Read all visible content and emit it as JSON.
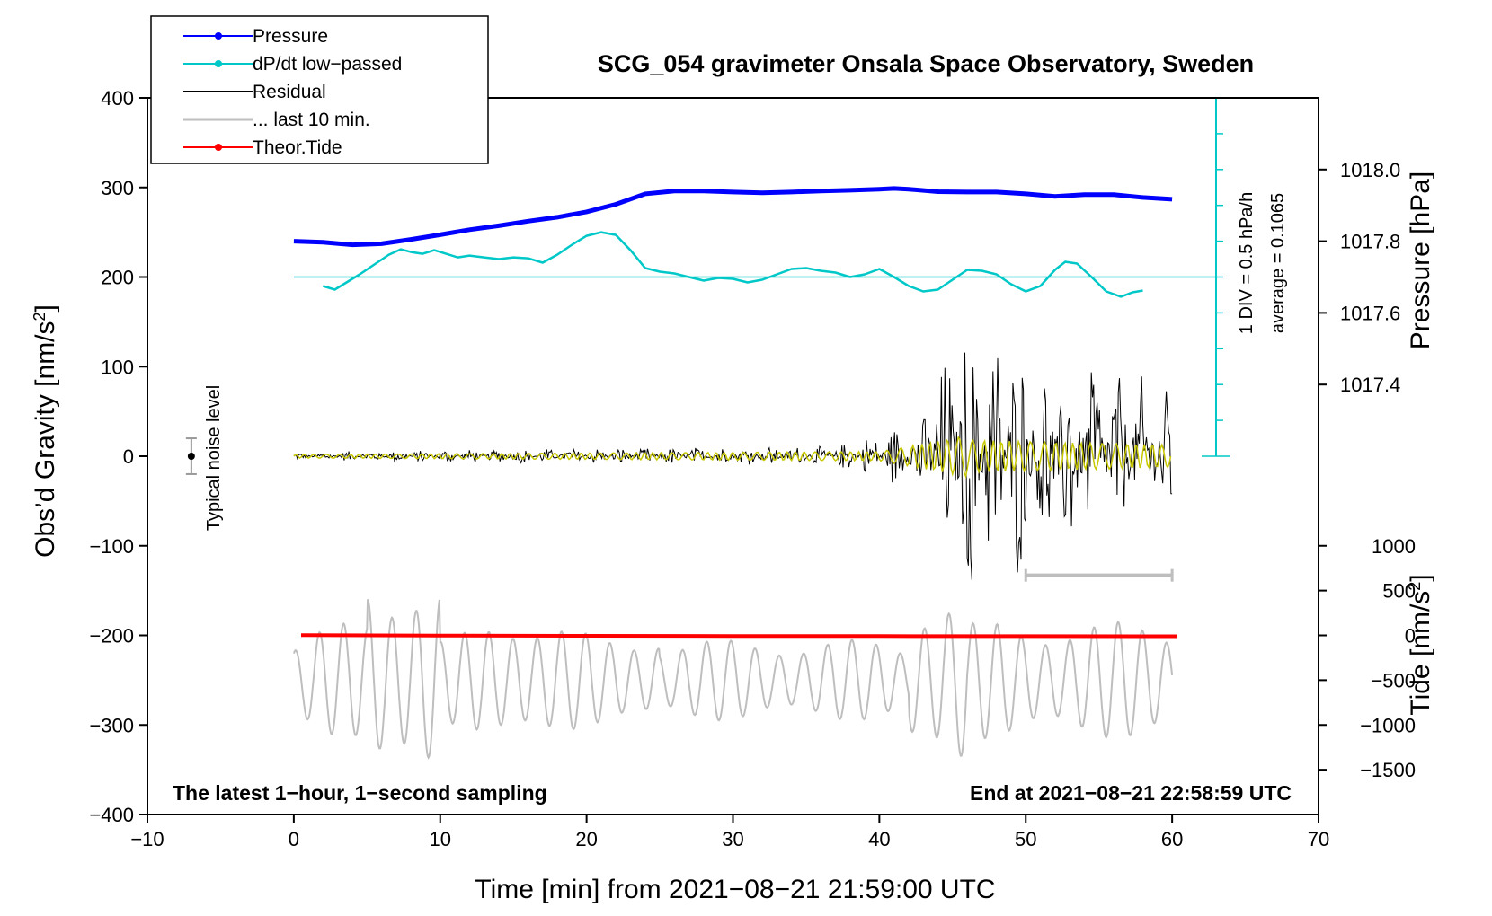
{
  "chart_data": {
    "type": "line",
    "title": "SCG_054 gravimeter Onsala Space Observatory, Sweden",
    "xlabel": "Time [min] from 2021−08−21 21:59:00 UTC",
    "ylabel_left_main": "Obs’d Gravity [nm/s",
    "ylabel_left_sup": "2",
    "ylabel_left_end": "]",
    "ylabel_right_top": "Pressure [hPa]",
    "ylabel_right_bottom_main": "Tide [nm/s",
    "ylabel_right_bottom_sup": "2",
    "ylabel_right_bottom_end": "]",
    "xlim": [
      -10,
      70
    ],
    "ylim": [
      -400,
      400
    ],
    "x_ticks": [
      -10,
      0,
      10,
      20,
      30,
      40,
      50,
      60,
      70
    ],
    "x_tick_labels": [
      "−10",
      "0",
      "10",
      "20",
      "30",
      "40",
      "50",
      "60",
      "70"
    ],
    "y_ticks": [
      -400,
      -300,
      -200,
      -100,
      0,
      100,
      200,
      300,
      400
    ],
    "y_tick_labels": [
      "−400",
      "−300",
      "−200",
      "−100",
      "0",
      "100",
      "200",
      "300",
      "400"
    ],
    "pressure_axis": {
      "ticks": [
        1017.4,
        1017.6,
        1017.8,
        1018.0
      ],
      "tick_labels": [
        "1017.4",
        "1017.6",
        "1017.8",
        "1018.0"
      ],
      "ref_value": 1018.0,
      "ref_gravity": 320,
      "gravity_per_hPa": 400
    },
    "tide_axis": {
      "ticks": [
        -1500,
        -1000,
        -500,
        0,
        500,
        1000
      ],
      "tick_labels": [
        "−1500",
        "−1000",
        "−500",
        "0",
        "500",
        "1000"
      ],
      "gravity_per_unit": 0.1
    },
    "dpdt_scale": {
      "label1": "1 DIV = 0.5 hPa/h",
      "label2": "average = 0.1065",
      "div_count": 10,
      "baseline_gravity": 200,
      "x_pos": 63
    },
    "legend": [
      {
        "label": "Pressure",
        "color": "#0000ff",
        "marker": true
      },
      {
        "label": "dP/dt low−passed",
        "color": "#00c8c8",
        "marker": true
      },
      {
        "label": "Residual",
        "color": "#000000",
        "marker": false
      },
      {
        "label": "... last 10 min.",
        "color": "#bebebe",
        "marker": false
      },
      {
        "label": "Theor.Tide",
        "color": "#ff0000",
        "marker": true
      }
    ],
    "noise": {
      "label": "Typical noise level",
      "x": -7,
      "center": 0,
      "half": 20
    },
    "last10_bar": {
      "x_start": 50,
      "x_end": 60,
      "gravity": -133
    },
    "ann_left": "The latest 1−hour, 1−second sampling",
    "ann_right": "End at 2021−08−21 22:58:59 UTC",
    "series": [
      {
        "name": "Pressure",
        "color": "#0000ff",
        "unit": "hPa",
        "x": [
          0,
          2,
          4,
          6,
          8,
          10,
          12,
          14,
          16,
          18,
          20,
          22,
          24,
          26,
          28,
          30,
          32,
          34,
          36,
          38,
          40,
          41,
          42,
          44,
          46,
          48,
          50,
          52,
          54,
          56,
          58,
          60
        ],
        "values": [
          1017.8,
          1017.797,
          1017.79,
          1017.793,
          1017.805,
          1017.818,
          1017.832,
          1017.843,
          1017.856,
          1017.867,
          1017.882,
          1017.903,
          1017.932,
          1017.94,
          1017.94,
          1017.937,
          1017.935,
          1017.937,
          1017.94,
          1017.942,
          1017.945,
          1017.947,
          1017.945,
          1017.938,
          1017.937,
          1017.937,
          1017.932,
          1017.925,
          1017.93,
          1017.93,
          1017.922,
          1017.917
        ]
      },
      {
        "name": "dP/dt low-passed",
        "color": "#00c8c8",
        "unit": "nm/s2 plot units",
        "x": [
          2.0,
          2.8,
          3.6,
          4.5,
          5.5,
          6.5,
          7.3,
          8.0,
          8.8,
          9.6,
          10.4,
          11.2,
          12.0,
          13.0,
          14.0,
          15.0,
          16.0,
          17.0,
          18.0,
          19.0,
          20.0,
          21.0,
          22.0,
          23.0,
          24.0,
          25.0,
          26.0,
          27.0,
          28.0,
          29.0,
          30.0,
          31.0,
          32.0,
          33.0,
          34.0,
          35.0,
          36.0,
          37.0,
          38.0,
          39.0,
          40.0,
          41.0,
          42.0,
          43.0,
          44.0,
          45.0,
          46.0,
          47.0,
          48.0,
          49.0,
          50.0,
          51.0,
          52.0,
          52.7,
          53.5,
          54.5,
          55.5,
          56.5,
          57.3,
          58.0
        ],
        "values": [
          190,
          186,
          194,
          203,
          214,
          225,
          231,
          228,
          226,
          230,
          226,
          222,
          224,
          222,
          220,
          222,
          221,
          216,
          225,
          236,
          246,
          250,
          247,
          230,
          210,
          206,
          204,
          200,
          196,
          199,
          198,
          194,
          197,
          203,
          209,
          210,
          207,
          205,
          200,
          203,
          209,
          200,
          190,
          184,
          186,
          197,
          208,
          207,
          203,
          192,
          184,
          190,
          208,
          217,
          215,
          200,
          184,
          178,
          183,
          185
        ]
      },
      {
        "name": "Residual",
        "color": "#000000",
        "unit": "nm/s2"
      },
      {
        "name": "... last 10 min.",
        "color": "#bebebe",
        "unit": "nm/s2"
      },
      {
        "name": "Theor.Tide",
        "color": "#ff0000",
        "unit": "nm/s2 (tide axis)",
        "x": [
          0.5,
          10,
          20,
          30,
          40,
          50,
          60.3
        ],
        "values": [
          2,
          -2,
          -5,
          -7,
          -8,
          -9,
          -10
        ]
      }
    ]
  }
}
